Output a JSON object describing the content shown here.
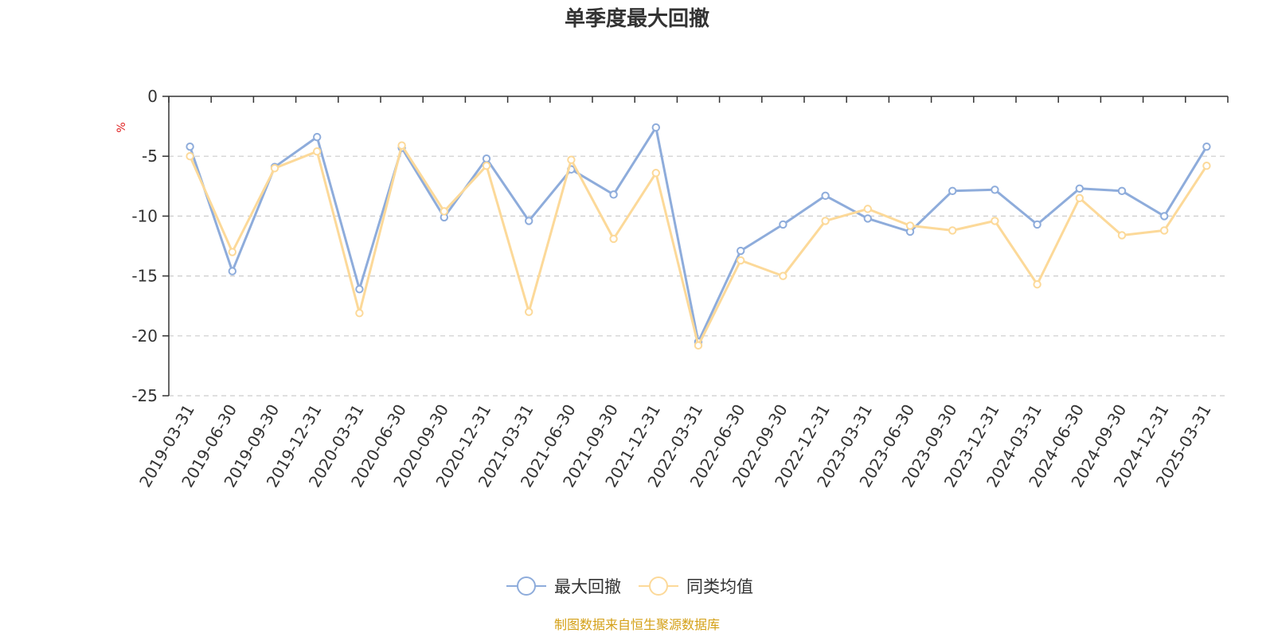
{
  "chart_data": {
    "type": "line",
    "title": "单季度最大回撤",
    "ylabel": "%",
    "ylim": [
      -25,
      0
    ],
    "yticks": [
      0,
      -5,
      -10,
      -15,
      -20,
      -25
    ],
    "grid": true,
    "legend_position": "bottom-center",
    "categories": [
      "2019-03-31",
      "2019-06-30",
      "2019-09-30",
      "2019-12-31",
      "2020-03-31",
      "2020-06-30",
      "2020-09-30",
      "2020-12-31",
      "2021-03-31",
      "2021-06-30",
      "2021-09-30",
      "2021-12-31",
      "2022-03-31",
      "2022-06-30",
      "2022-09-30",
      "2022-12-31",
      "2023-03-31",
      "2023-06-30",
      "2023-09-30",
      "2023-12-31",
      "2024-03-31",
      "2024-06-30",
      "2024-09-30",
      "2024-12-31",
      "2025-03-31"
    ],
    "series": [
      {
        "name": "最大回撤",
        "color": "#8eacdb",
        "values": [
          -4.2,
          -14.6,
          -5.9,
          -3.4,
          -16.1,
          -4.3,
          -10.1,
          -5.2,
          -10.4,
          -6.1,
          -8.2,
          -2.6,
          -20.5,
          -12.9,
          -10.7,
          -8.3,
          -10.2,
          -11.3,
          -7.9,
          -7.8,
          -10.7,
          -7.7,
          -7.9,
          -10.0,
          -4.2
        ]
      },
      {
        "name": "同类均值",
        "color": "#fcd999",
        "values": [
          -5.0,
          -13.0,
          -6.0,
          -4.6,
          -18.1,
          -4.1,
          -9.6,
          -5.8,
          -18.0,
          -5.3,
          -11.9,
          -6.4,
          -20.8,
          -13.7,
          -15.0,
          -10.4,
          -9.4,
          -10.8,
          -11.2,
          -10.4,
          -15.7,
          -8.5,
          -11.6,
          -11.2,
          -5.8
        ]
      }
    ]
  },
  "source_note": "制图数据来自恒生聚源数据库",
  "colors": {
    "axis": "#333333",
    "grid": "#cccccc",
    "unit_label": "#e02020",
    "source_note": "#d4a017"
  }
}
